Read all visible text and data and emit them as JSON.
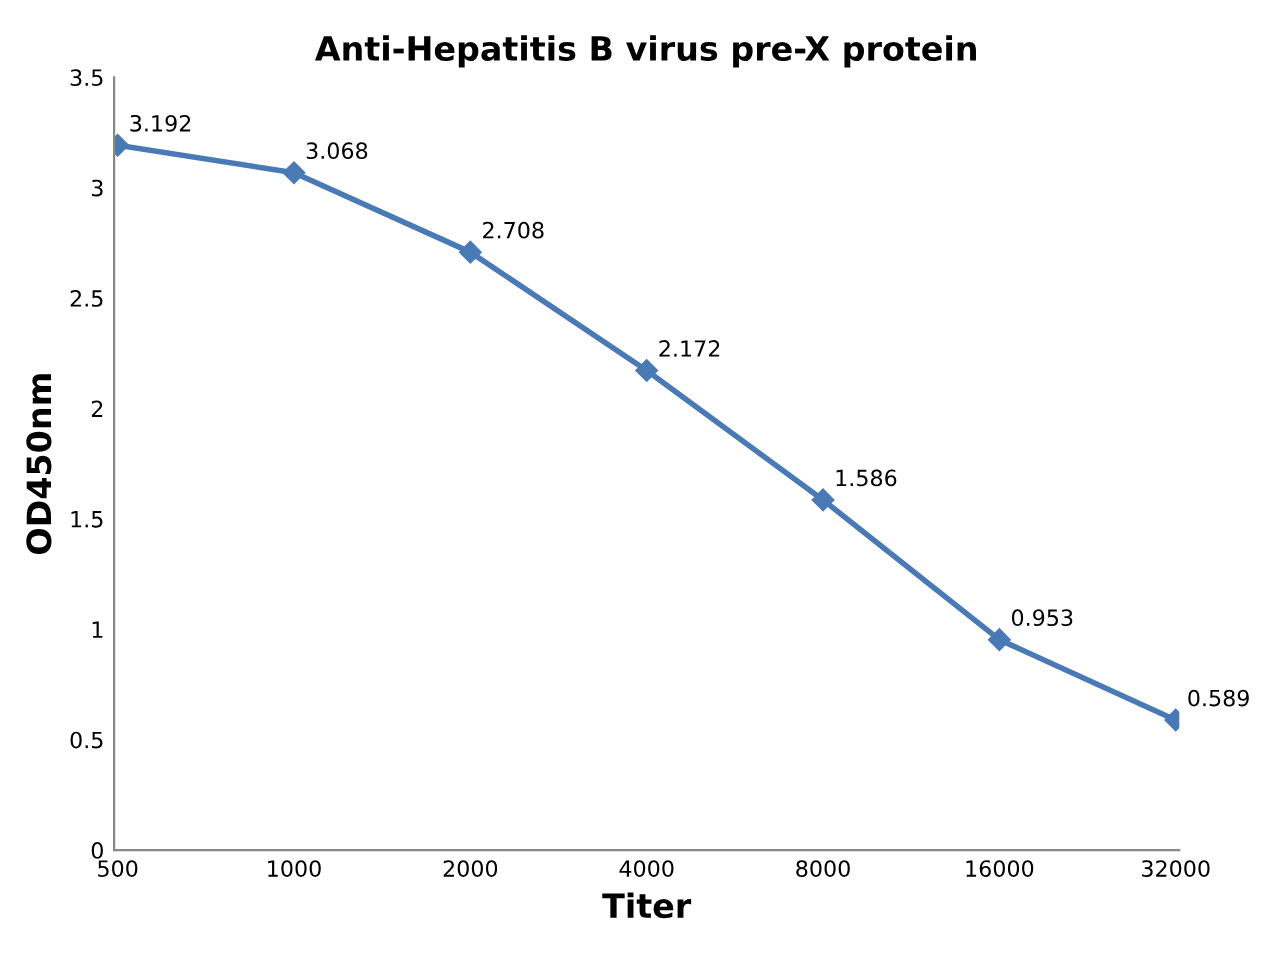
{
  "chart_data": {
    "type": "line",
    "title": "Anti-Hepatitis B virus pre-X protein",
    "xlabel": "Titer",
    "ylabel": "OD450nm",
    "categories": [
      "500",
      "1000",
      "2000",
      "4000",
      "8000",
      "16000",
      "32000"
    ],
    "series": [
      {
        "color": "#4a7ab5",
        "values": [
          3.192,
          3.068,
          2.708,
          2.172,
          1.586,
          0.953,
          0.589
        ]
      }
    ],
    "ylim": [
      0,
      3.5
    ],
    "yticks": [
      0,
      0.5,
      1,
      1.5,
      2,
      2.5,
      3,
      3.5
    ],
    "grid": false,
    "marker": "diamond",
    "line_style": "solid",
    "data_labels": true
  }
}
